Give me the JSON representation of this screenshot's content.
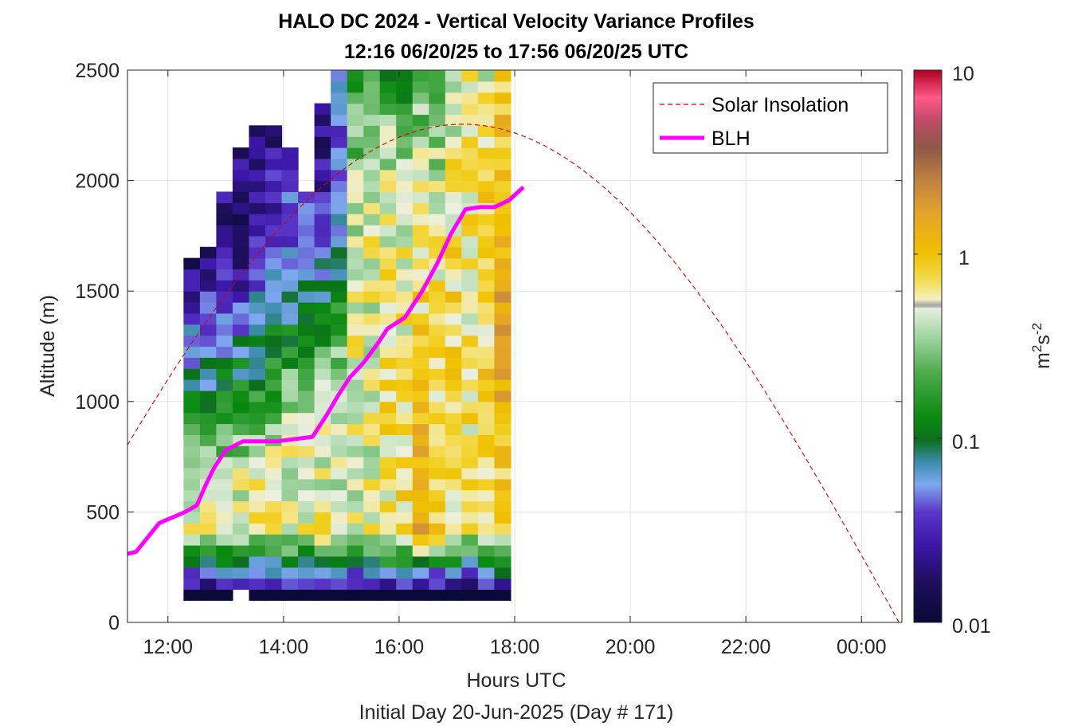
{
  "chart_data": {
    "type": "heatmap",
    "title": "HALO DC 2024 - Vertical Velocity Variance Profiles",
    "subtitle": "12:16 06/20/25 to 17:56 06/20/25  UTC",
    "xlabel": "Hours UTC",
    "xlabel2": "Initial Day 20-Jun-2025 (Day # 171)",
    "ylabel": "Altitude (m)",
    "xlim_hours": [
      11.3,
      24.7
    ],
    "ylim": [
      0,
      2500
    ],
    "x_ticks": [
      {
        "value": 12,
        "label": "12:00"
      },
      {
        "value": 14,
        "label": "14:00"
      },
      {
        "value": 16,
        "label": "16:00"
      },
      {
        "value": 18,
        "label": "18:00"
      },
      {
        "value": 20,
        "label": "20:00"
      },
      {
        "value": 22,
        "label": "22:00"
      },
      {
        "value": 24,
        "label": "00:00"
      }
    ],
    "y_ticks": [
      0,
      500,
      1000,
      1500,
      2000,
      2500
    ],
    "grid": true,
    "colorbar": {
      "label_base": "m",
      "label_sup1": "2",
      "label_s": "s",
      "label_sup2": "-2",
      "scale": "log",
      "range": [
        0.01,
        10
      ],
      "tick_labels": [
        "0.01",
        "0.1",
        "1",
        "10"
      ]
    },
    "legend": {
      "position": "top-right",
      "entries": [
        {
          "label": "Solar Insolation",
          "style": "dashed",
          "color": "#d40000"
        },
        {
          "label": "BLH",
          "style": "solid",
          "color": "#ff00ff"
        }
      ]
    },
    "heatmap_time_range": [
      12.27,
      17.93
    ],
    "heatmap_alt_range": [
      100,
      2500
    ],
    "heatmap_columns": 20,
    "heatmap_rows": 48,
    "variance_profile_description_percolumn_log10": [
      [
        -2.0,
        -0.3,
        -0.3,
        -1.0,
        -1.3,
        -1.7,
        -1.7,
        -1.6,
        -1.8
      ],
      [
        -2.0,
        -0.3,
        -0.35,
        -1.0,
        -1.2,
        -1.6,
        -1.7,
        -1.6,
        -1.8
      ],
      [
        -2.0,
        -0.3,
        -0.4,
        -0.9,
        -1.3,
        -1.5,
        -1.7,
        -1.6,
        -1.8
      ],
      [
        -2.0,
        -0.3,
        -0.4,
        -0.8,
        -1.2,
        -1.7,
        -1.8,
        -1.7,
        -1.6
      ],
      [
        -2.0,
        -0.3,
        -0.3,
        -0.8,
        -1.1,
        -1.4,
        -1.6,
        -1.6,
        -1.5
      ],
      [
        -2.0,
        -0.3,
        -0.3,
        -0.7,
        -1.0,
        -1.3,
        -1.5,
        -1.7,
        -1.5
      ],
      [
        -2.0,
        -0.3,
        -0.3,
        -0.5,
        -0.9,
        -1.3,
        -1.3,
        -1.4,
        -1.3
      ],
      [
        -2.0,
        -0.3,
        -0.3,
        -0.4,
        -1.0,
        -1.1,
        -1.2,
        -1.3,
        -1.3
      ],
      [
        -2.0,
        -0.25,
        -0.3,
        -0.3,
        -0.9,
        -1.2,
        -1.5,
        -1.7,
        -1.4
      ],
      [
        -2.0,
        -0.3,
        -0.35,
        -0.3,
        -0.7,
        -1.0,
        -1.2,
        -1.4,
        -1.2
      ],
      [
        -2.0,
        -0.3,
        -0.3,
        -0.3,
        -0.3,
        -0.4,
        -0.4,
        -0.6,
        -0.7
      ],
      [
        -2.0,
        -0.3,
        -0.3,
        -0.3,
        -0.3,
        -0.3,
        -0.3,
        -0.4,
        -0.5
      ],
      [
        -2.0,
        -0.2,
        -0.2,
        -0.2,
        -0.2,
        -0.25,
        -0.35,
        -0.45,
        -0.8
      ],
      [
        -2.0,
        -0.2,
        -0.15,
        -0.15,
        -0.25,
        -0.25,
        -0.3,
        -0.5,
        -1.0
      ],
      [
        -2.0,
        0.1,
        0.1,
        0.0,
        -0.1,
        -0.2,
        -0.3,
        -0.5,
        -0.6
      ],
      [
        -2.0,
        -0.1,
        -0.1,
        -0.1,
        -0.15,
        -0.2,
        -0.3,
        -0.5,
        -0.6
      ],
      [
        -2.0,
        -0.2,
        -0.2,
        -0.15,
        -0.1,
        -0.15,
        -0.2,
        -0.3,
        -0.4
      ],
      [
        -2.0,
        -0.3,
        -0.2,
        -0.2,
        -0.2,
        -0.2,
        -0.2,
        -0.2,
        -0.3
      ],
      [
        -2.0,
        -0.2,
        -0.1,
        -0.1,
        -0.1,
        -0.1,
        -0.15,
        -0.2,
        -0.3
      ],
      [
        -2.0,
        -0.1,
        -0.1,
        0.1,
        0.3,
        0.2,
        0.1,
        0.0,
        -0.1
      ]
    ],
    "blh_series": {
      "name": "BLH",
      "x_hours": [
        11.3,
        11.45,
        11.85,
        12.3,
        12.5,
        12.65,
        12.8,
        13.0,
        13.3,
        13.6,
        13.9,
        14.2,
        14.5,
        14.75,
        14.95,
        15.15,
        15.4,
        15.65,
        15.8,
        16.1,
        16.4,
        16.65,
        16.9,
        17.15,
        17.4,
        17.65,
        17.9,
        18.15
      ],
      "y": [
        310,
        320,
        450,
        500,
        530,
        620,
        700,
        780,
        820,
        820,
        820,
        830,
        840,
        940,
        1030,
        1110,
        1180,
        1270,
        1330,
        1380,
        1500,
        1620,
        1760,
        1870,
        1880,
        1880,
        1910,
        1970
      ]
    },
    "solar_insolation": {
      "name": "Solar Insolation",
      "peak_hour": 17.1,
      "peak_altitude": 2255,
      "zero_hour": 24.65,
      "x_range": [
        11.3,
        24.65
      ]
    }
  }
}
